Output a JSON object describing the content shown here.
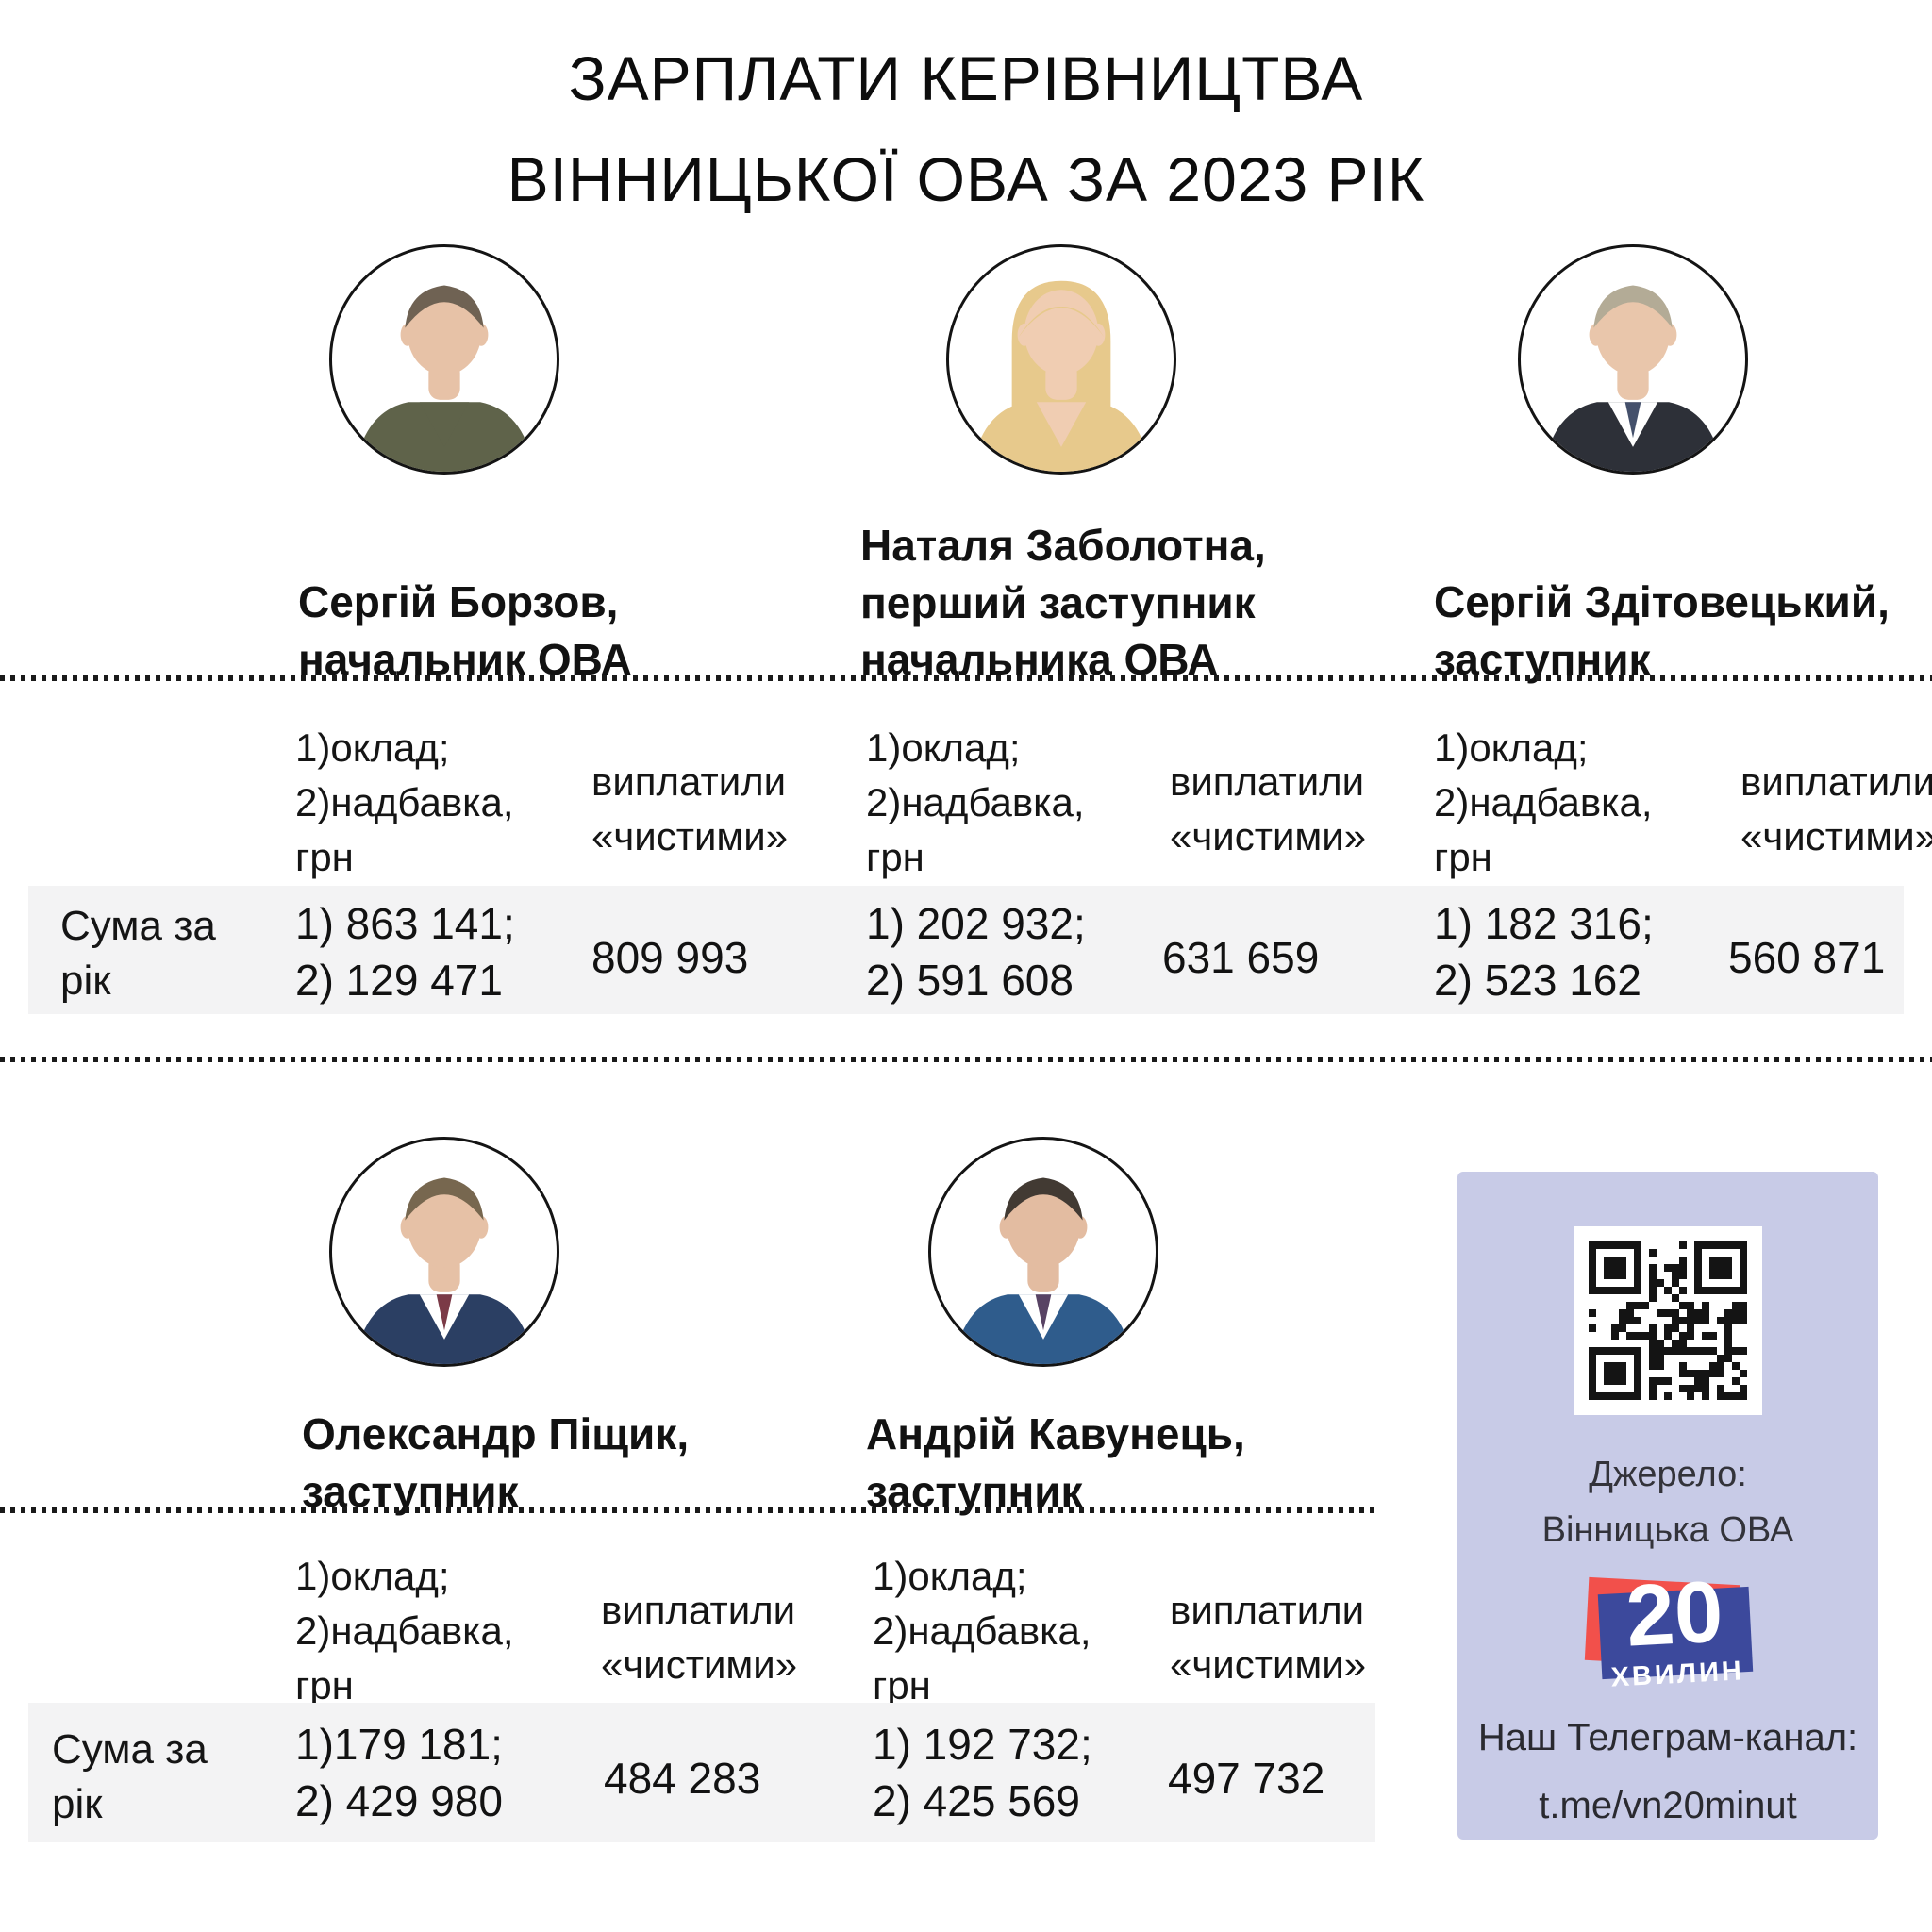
{
  "title": {
    "line1": "ЗАРПЛАТИ КЕРІВНИЦТВА",
    "line2": "ВІННИЦЬКОЇ ОВА ЗА 2023 РІК"
  },
  "table": {
    "row_label": "Сума за\nрік",
    "salary_header": "1)оклад;\n2)надбавка,\nгрн",
    "net_header": "виплатили\n«чистими»"
  },
  "people": [
    {
      "name": "Сергій Борзов,",
      "role": "начальник ОВА",
      "salary": "1) 863 141;\n2) 129 471",
      "net": "809 993",
      "avatar": {
        "style": "male",
        "hair": "#6f6253",
        "skin": "#e7c2a7",
        "top": "#5f634a",
        "shirt": "#5f634a",
        "tie": "transparent"
      }
    },
    {
      "name": "Наталя Заболотна,",
      "role": "перший заступник\nначальника ОВА",
      "salary": "1) 202 932;\n2) 591 608",
      "net": "631 659",
      "avatar": {
        "style": "female",
        "hair": "#e7c98c",
        "skin": "#f0cdb2",
        "top": "#e7c98c",
        "shirt": "#f0cdb2",
        "tie": "transparent"
      }
    },
    {
      "name": "Сергій Здітовецький,",
      "role": "заступник",
      "salary": "1) 182 316;\n2) 523 162",
      "net": "560 871",
      "avatar": {
        "style": "male",
        "hair": "#b3ab96",
        "skin": "#e9c6ab",
        "top": "#2d3038",
        "shirt": "#ffffff",
        "tie": "#44506b"
      }
    },
    {
      "name": "Олександр Піщик,",
      "role": "заступник",
      "salary": "1)179 181;\n2) 429 980",
      "net": "484 283",
      "avatar": {
        "style": "male",
        "hair": "#77674f",
        "skin": "#e6c1a6",
        "top": "#2b3f63",
        "shirt": "#ffffff",
        "tie": "#7b3a47"
      }
    },
    {
      "name": "Андрій Кавунець,",
      "role": "заступник",
      "salary": "1) 192 732;\n2) 425 569",
      "net": "497 732",
      "avatar": {
        "style": "male",
        "hair": "#423a33",
        "skin": "#e3bca1",
        "top": "#2f5c8c",
        "shirt": "#ffffff",
        "tie": "#584364"
      }
    }
  ],
  "source_panel": {
    "source_label": "Джерело:",
    "source_name": "Вінницька ОВА",
    "logo_number": "20",
    "logo_word": "хвилин",
    "telegram_label": "Наш Телеграм-канал:",
    "telegram_url": "t.me/vn20minut"
  },
  "theme": {
    "bg": "#ffffff",
    "text": "#111111",
    "row_band": "#f3f3f4",
    "divider": "#1a1a1a",
    "panel_bg": "#c8cbe7",
    "panel_text": "#33333a",
    "logo_blue": "#3c499c",
    "logo_red": "#f2504b",
    "qr_dark": "#141414"
  }
}
